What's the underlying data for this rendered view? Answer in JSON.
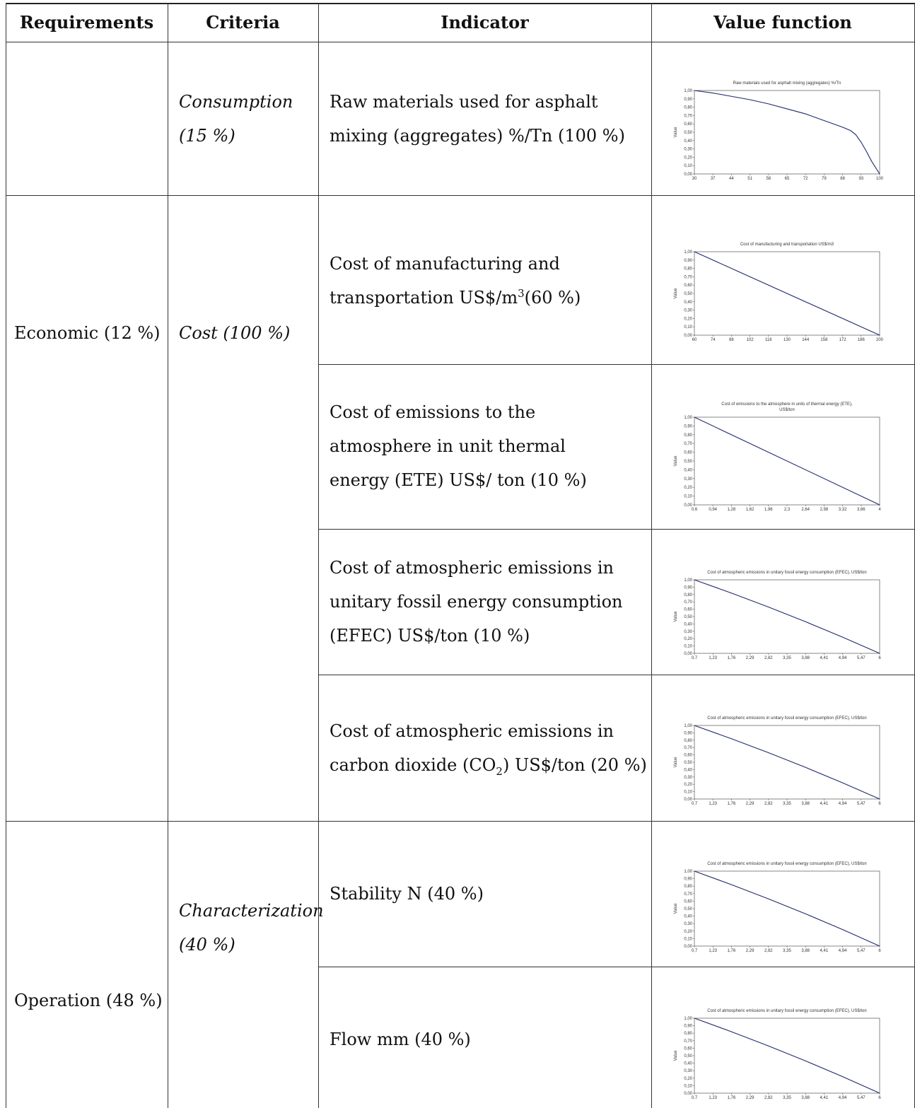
{
  "header": {
    "requirements": "Requirements",
    "criteria": "Criteria",
    "indicator": "Indicator",
    "value_function": "Value function"
  },
  "rows": {
    "requirement_economic": "Economic (12 %)",
    "requirement_operation": "Operation (48 %)",
    "criteria_consumption": [
      "Consumption",
      "(15 %)"
    ],
    "criteria_cost": "Cost (100 %)",
    "criteria_characterization": [
      "Characterization",
      "(40 %)"
    ]
  },
  "indicators": {
    "raw_materials": [
      "Raw materials used for asphalt",
      "mixing (aggregates) %/Tn (100 %)"
    ],
    "manufacturing": [
      "Cost of manufacturing and",
      "transportation US$/m",
      "3",
      "(60 %)"
    ],
    "ete": [
      "Cost of emissions to the",
      "atmosphere in unit thermal",
      "energy (ETE) US$/ ton (10 %)"
    ],
    "efec": [
      "Cost of atmospheric emissions in",
      "unitary fossil energy consumption",
      "(EFEC) US$/ton (10 %)"
    ],
    "co2": [
      "Cost of atmospheric emissions in",
      "carbon dioxide (CO",
      "2",
      ") US$/ton (20 %)"
    ],
    "stability": "Stability N (40 %)",
    "flow": "Flow mm (40 %)"
  },
  "chart_data": [
    {
      "id": "raw",
      "type": "line",
      "title": "Raw materials used for asphalt mixing (aggregates) %/Tn",
      "title2": "",
      "ylabel": "Value",
      "x_ticks": [
        "30",
        "37",
        "44",
        "51",
        "58",
        "65",
        "72",
        "79",
        "86",
        "93",
        "100"
      ],
      "y_ticks": [
        "1,00",
        "0,90",
        "0,80",
        "0,70",
        "0,60",
        "0,50",
        "0,40",
        "0,30",
        "0,20",
        "0,10",
        "0,00"
      ],
      "xlim": [
        30,
        100
      ],
      "ylim": [
        0,
        1
      ],
      "x": [
        30,
        37,
        44,
        51,
        58,
        65,
        72,
        79,
        86,
        89,
        91,
        93,
        95,
        97,
        100
      ],
      "y": [
        1.0,
        0.97,
        0.93,
        0.89,
        0.84,
        0.78,
        0.72,
        0.64,
        0.56,
        0.52,
        0.47,
        0.38,
        0.27,
        0.15,
        0.0
      ]
    },
    {
      "id": "manufacturing",
      "type": "line",
      "title": "Cost of manufacturing and transportation US$/m3",
      "title2": "",
      "ylabel": "Value",
      "x_ticks": [
        "60",
        "74",
        "88",
        "102",
        "116",
        "130",
        "144",
        "158",
        "172",
        "186",
        "200"
      ],
      "y_ticks": [
        "1,00",
        "0,90",
        "0,80",
        "0,70",
        "0,60",
        "0,50",
        "0,40",
        "0,30",
        "0,20",
        "0,10",
        "0,00"
      ],
      "xlim": [
        60,
        200
      ],
      "ylim": [
        0,
        1
      ],
      "x": [
        60,
        200
      ],
      "y": [
        1.0,
        0.0
      ]
    },
    {
      "id": "ete",
      "type": "line",
      "title": "Cost of emissions to the atmosphere in units of thermal energy (ETE),",
      "title2": "US$/ton",
      "ylabel": "Value",
      "x_ticks": [
        "0,6",
        "0,94",
        "1,28",
        "1,62",
        "1,96",
        "2,3",
        "2,64",
        "2,98",
        "3,32",
        "3,66",
        "4"
      ],
      "y_ticks": [
        "1,00",
        "0,90",
        "0,80",
        "0,70",
        "0,60",
        "0,50",
        "0,40",
        "0,30",
        "0,20",
        "0,10",
        "0,00"
      ],
      "xlim": [
        0.6,
        4
      ],
      "ylim": [
        0,
        1
      ],
      "x": [
        0.6,
        4
      ],
      "y": [
        1.0,
        0.0
      ]
    },
    {
      "id": "efec",
      "type": "line",
      "title": "Cost of atmospheric emissions in unitary fossil energy consumption (EFEC), US$/ton",
      "title2": "",
      "ylabel": "Value",
      "x_ticks": [
        "0,7",
        "1,23",
        "1,76",
        "2,29",
        "2,82",
        "3,35",
        "3,88",
        "4,41",
        "4,94",
        "5,47",
        "6"
      ],
      "y_ticks": [
        "1,00",
        "0,90",
        "0,80",
        "0,70",
        "0,60",
        "0,50",
        "0,40",
        "0,30",
        "0,20",
        "0,10",
        "0,00"
      ],
      "xlim": [
        0.7,
        6
      ],
      "ylim": [
        0,
        1
      ],
      "x": [
        0.7,
        1.76,
        2.82,
        3.88,
        4.94,
        6
      ],
      "y": [
        1.0,
        0.82,
        0.63,
        0.43,
        0.22,
        0.0
      ]
    },
    {
      "id": "co2",
      "type": "line",
      "title": "Cost of atmospheric emissions in unitary fossil energy consumption (EFEC), US$/ton",
      "title2": "",
      "ylabel": "Value",
      "x_ticks": [
        "0,7",
        "1,23",
        "1,76",
        "2,29",
        "2,82",
        "3,35",
        "3,88",
        "4,41",
        "4,94",
        "5,47",
        "6"
      ],
      "y_ticks": [
        "1,00",
        "0,90",
        "0,80",
        "0,70",
        "0,60",
        "0,50",
        "0,40",
        "0,30",
        "0,20",
        "0,10",
        "0,00"
      ],
      "xlim": [
        0.7,
        6
      ],
      "ylim": [
        0,
        1
      ],
      "x": [
        0.7,
        1.76,
        2.82,
        3.88,
        4.94,
        6
      ],
      "y": [
        1.0,
        0.82,
        0.63,
        0.43,
        0.22,
        0.0
      ]
    },
    {
      "id": "stability",
      "type": "line",
      "title": "Cost of atmospheric emissions in unitary fossil energy consumption (EFEC), US$/ton",
      "title2": "",
      "ylabel": "Value",
      "x_ticks": [
        "0,7",
        "1,23",
        "1,76",
        "2,29",
        "2,82",
        "3,35",
        "3,88",
        "4,41",
        "4,94",
        "5,47",
        "6"
      ],
      "y_ticks": [
        "1,00",
        "0,90",
        "0,80",
        "0,70",
        "0,60",
        "0,50",
        "0,40",
        "0,30",
        "0,20",
        "0,10",
        "0,00"
      ],
      "xlim": [
        0.7,
        6
      ],
      "ylim": [
        0,
        1
      ],
      "x": [
        0.7,
        1.76,
        2.82,
        3.88,
        4.94,
        6
      ],
      "y": [
        1.0,
        0.82,
        0.63,
        0.43,
        0.22,
        0.0
      ]
    },
    {
      "id": "flow",
      "type": "line",
      "title": "Cost of atmospheric emissions in unitary fossil energy consumption (EFEC), US$/ton",
      "title2": "",
      "ylabel": "Value",
      "x_ticks": [
        "0,7",
        "1,23",
        "1,76",
        "2,29",
        "2,82",
        "3,35",
        "3,88",
        "4,41",
        "4,94",
        "5,47",
        "6"
      ],
      "y_ticks": [
        "1,00",
        "0,90",
        "0,80",
        "0,70",
        "0,60",
        "0,50",
        "0,40",
        "0,30",
        "0,20",
        "0,10",
        "0,00"
      ],
      "xlim": [
        0.7,
        6
      ],
      "ylim": [
        0,
        1
      ],
      "x": [
        0.7,
        1.76,
        2.82,
        3.88,
        4.94,
        6
      ],
      "y": [
        1.0,
        0.82,
        0.63,
        0.43,
        0.22,
        0.0
      ]
    }
  ],
  "colors": {
    "line": "#1f2a6b",
    "rule": "#333333"
  }
}
